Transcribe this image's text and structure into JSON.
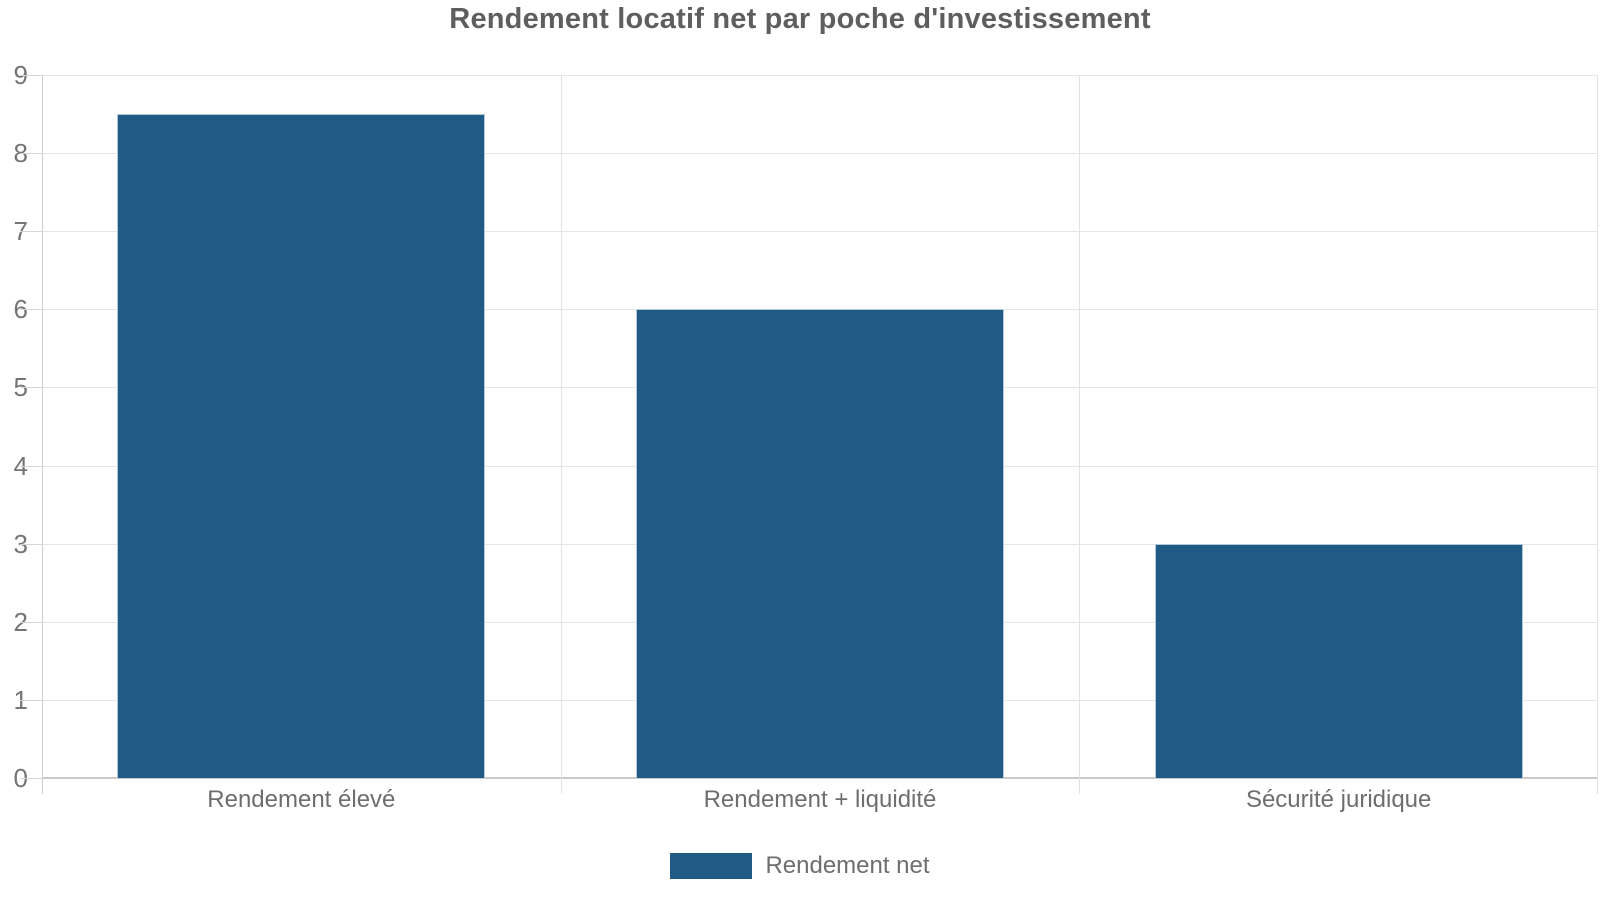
{
  "chart_data": {
    "type": "bar",
    "title": "Rendement locatif net par poche d'investissement",
    "categories": [
      "Rendement élevé",
      "Rendement + liquidité",
      "Sécurité juridique"
    ],
    "series": [
      {
        "name": "Rendement net",
        "values": [
          8.5,
          6,
          3
        ]
      }
    ],
    "xlabel": "",
    "ylabel": "",
    "ylim": [
      0,
      9
    ],
    "ytick_step": 1,
    "grid": true,
    "legend_position": "bottom",
    "bar_color": "#205B86"
  }
}
